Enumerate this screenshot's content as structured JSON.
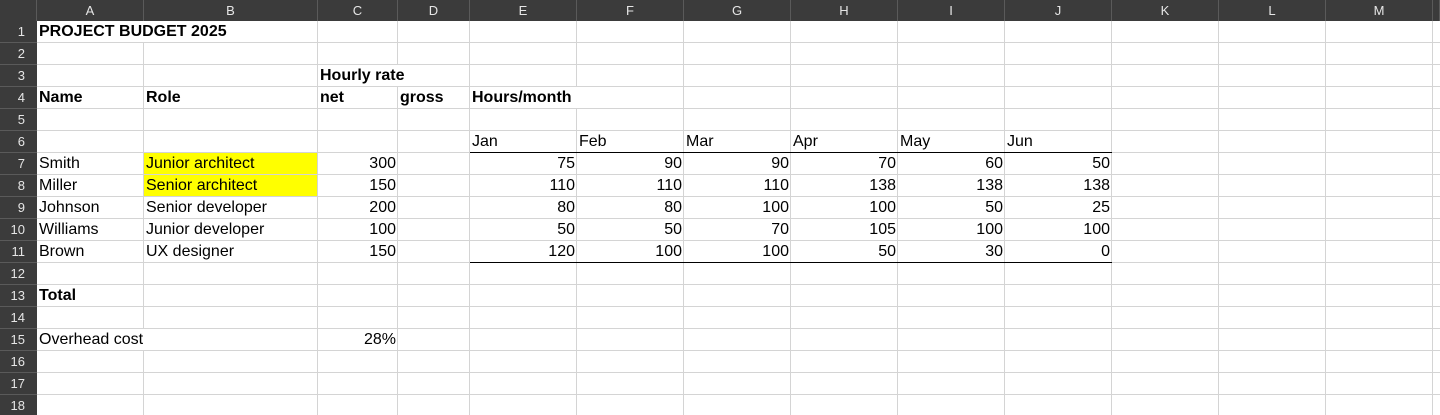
{
  "columns": [
    "A",
    "B",
    "C",
    "D",
    "E",
    "F",
    "G",
    "H",
    "I",
    "J",
    "K",
    "L",
    "M"
  ],
  "rows": [
    "1",
    "2",
    "3",
    "4",
    "5",
    "6",
    "7",
    "8",
    "9",
    "10",
    "11",
    "12",
    "13",
    "14",
    "15",
    "16",
    "17",
    "18"
  ],
  "title": "PROJECT BUDGET 2025",
  "header": {
    "hourly_rate": "Hourly rate",
    "name": "Name",
    "role": "Role",
    "net": "net",
    "gross": "gross",
    "hours_month": "Hours/month"
  },
  "months": [
    "Jan",
    "Feb",
    "Mar",
    "Apr",
    "May",
    "Jun"
  ],
  "staff": [
    {
      "name": "Smith",
      "role": "Junior architect",
      "rate": "300",
      "hours": [
        "75",
        "90",
        "90",
        "70",
        "60",
        "50"
      ],
      "highlight": true
    },
    {
      "name": "Miller",
      "role": "Senior architect",
      "rate": "150",
      "hours": [
        "110",
        "110",
        "110",
        "138",
        "138",
        "138"
      ],
      "highlight": true
    },
    {
      "name": "Johnson",
      "role": "Senior developer",
      "rate": "200",
      "hours": [
        "80",
        "80",
        "100",
        "100",
        "50",
        "25"
      ],
      "highlight": false
    },
    {
      "name": "Williams",
      "role": "Junior developer",
      "rate": "100",
      "hours": [
        "50",
        "50",
        "70",
        "105",
        "100",
        "100"
      ],
      "highlight": false
    },
    {
      "name": "Brown",
      "role": "UX designer",
      "rate": "150",
      "hours": [
        "120",
        "100",
        "100",
        "50",
        "30",
        "0"
      ],
      "highlight": false
    }
  ],
  "total_label": "Total",
  "overhead": {
    "label": "Overhead cost",
    "value": "28%"
  },
  "colors": {
    "header_bg": "#3b3b3b",
    "highlight": "#ffff00",
    "grid": "#d4d4d4"
  }
}
